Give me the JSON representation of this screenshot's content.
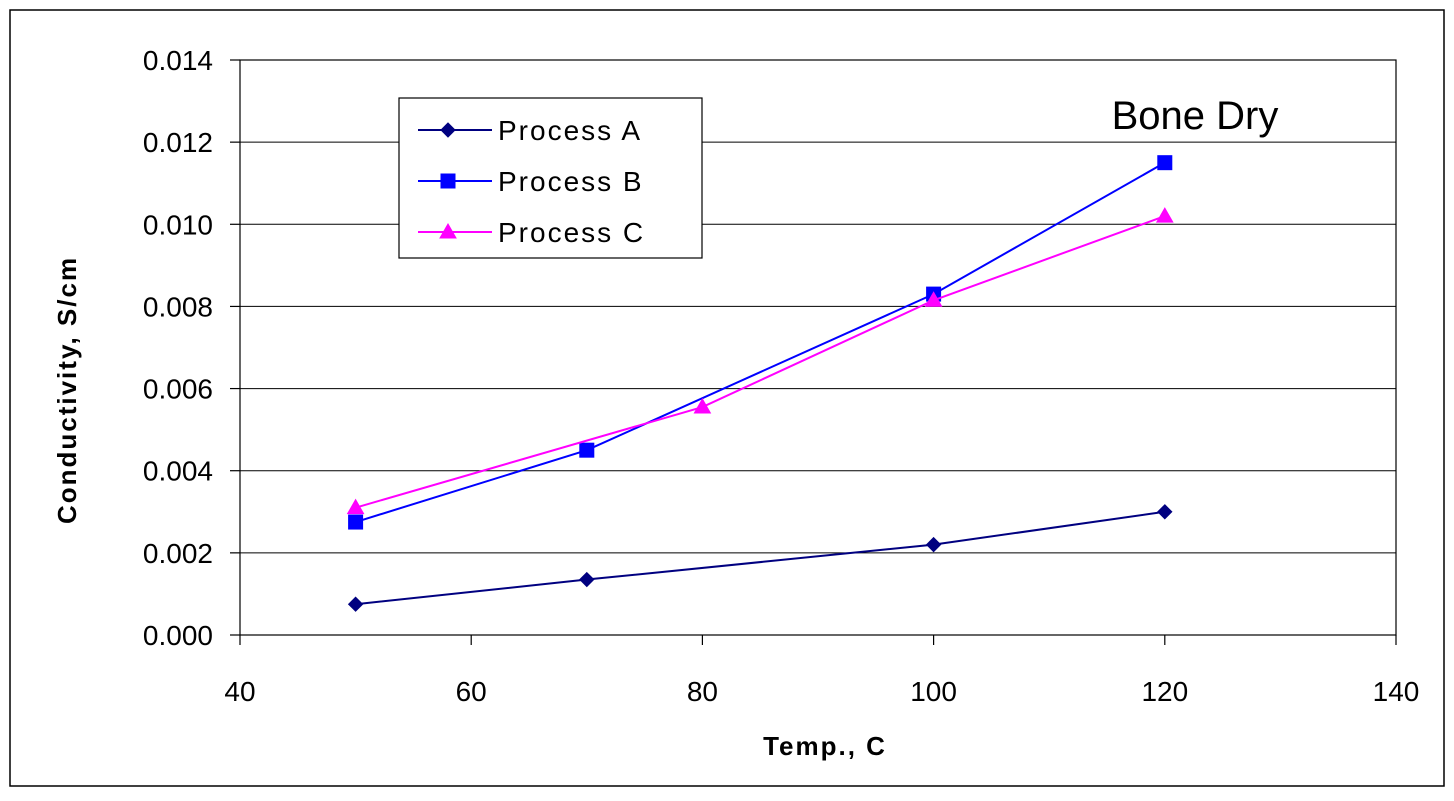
{
  "chart_data": {
    "type": "line",
    "annotation": "Bone Dry",
    "xlabel": "Temp., C",
    "ylabel": "Conductivity, S/cm",
    "xlim": [
      40,
      140
    ],
    "ylim": [
      0,
      0.014
    ],
    "x_ticks": [
      "40",
      "60",
      "80",
      "100",
      "120",
      "140"
    ],
    "y_ticks": [
      "0.000",
      "0.002",
      "0.004",
      "0.006",
      "0.008",
      "0.010",
      "0.012",
      "0.014"
    ],
    "grid": "horizontal",
    "legend_position": "top-left",
    "series": [
      {
        "name": "Process A",
        "color": "#000080",
        "marker": "diamond",
        "points": [
          [
            50,
            0.00075
          ],
          [
            70,
            0.00135
          ],
          [
            100,
            0.0022
          ],
          [
            120,
            0.003
          ]
        ]
      },
      {
        "name": "Process B",
        "color": "#0000FF",
        "marker": "square",
        "points": [
          [
            50,
            0.00275
          ],
          [
            70,
            0.0045
          ],
          [
            100,
            0.0083
          ],
          [
            120,
            0.0115
          ]
        ]
      },
      {
        "name": "Process C",
        "color": "#FF00FF",
        "marker": "triangle",
        "points": [
          [
            50,
            0.0031
          ],
          [
            80,
            0.00555
          ],
          [
            100,
            0.00815
          ],
          [
            120,
            0.0102
          ]
        ]
      }
    ]
  }
}
